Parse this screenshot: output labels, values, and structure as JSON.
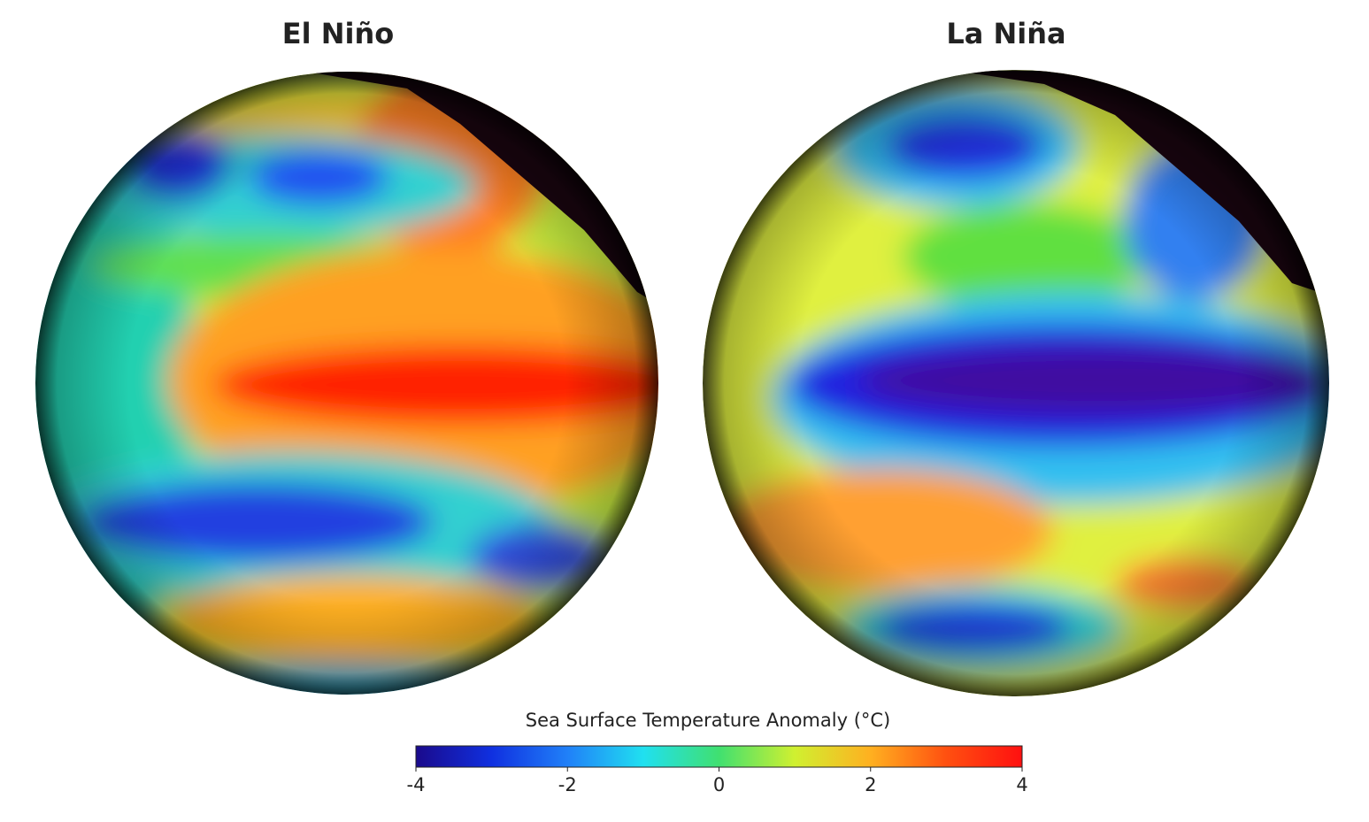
{
  "panels": [
    {
      "title": "El Niño"
    },
    {
      "title": "La Niña"
    }
  ],
  "colorbar": {
    "label": "Sea Surface Temperature Anomaly (°C)",
    "range": [
      -4,
      4
    ],
    "ticks": [
      -4,
      -2,
      0,
      2,
      4
    ],
    "colors": [
      "#1a0a8c",
      "#1030e0",
      "#2080f8",
      "#20e0f0",
      "#40e070",
      "#d0f030",
      "#ffb020",
      "#ff5010",
      "#ff1010"
    ]
  }
}
